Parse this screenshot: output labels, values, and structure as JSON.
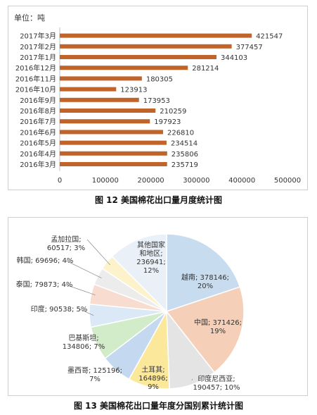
{
  "charts": [
    {
      "type": "bar",
      "orientation": "horizontal",
      "unit_label": "单位：吨",
      "categories": [
        "2017年3月",
        "2017年2月",
        "2017年1月",
        "2016年12月",
        "2016年11月",
        "2016年10月",
        "2016年9月",
        "2016年8月",
        "2016年7月",
        "2016年6月",
        "2016年5月",
        "2016年4月",
        "2016年3月"
      ],
      "values": [
        421547,
        377457,
        344103,
        281214,
        180305,
        123913,
        173953,
        210259,
        197923,
        226810,
        234514,
        235806,
        235719
      ],
      "xlim": [
        0,
        500000
      ],
      "xticks": [
        0,
        100000,
        200000,
        300000,
        400000,
        500000
      ],
      "grid": false,
      "bar_color": "#c0642a",
      "caption": "图 12  美国棉花出口量月度统计图"
    },
    {
      "type": "pie",
      "slices": [
        {
          "label": "越南",
          "value": 378146,
          "pct": "20%",
          "color": "#c8dcf0"
        },
        {
          "label": "中国",
          "value": 371426,
          "pct": "19%",
          "color": "#f6cfb8"
        },
        {
          "label": "印度尼西亚",
          "value": 190457,
          "pct": "10%",
          "color": "#e4e4e4"
        },
        {
          "label": "土耳其",
          "value": 164896,
          "pct": "9%",
          "color": "#fbe89a"
        },
        {
          "label": "墨西哥",
          "value": 125196,
          "pct": "7%",
          "color": "#c4d9ef"
        },
        {
          "label": "巴基斯坦",
          "value": 134806,
          "pct": "7%",
          "color": "#d2ebc8"
        },
        {
          "label": "印度",
          "value": 90538,
          "pct": "5%",
          "color": "#dbe8f6"
        },
        {
          "label": "泰国",
          "value": 79873,
          "pct": "4%",
          "color": "#f8dcd0"
        },
        {
          "label": "韩国",
          "value": 69696,
          "pct": "4%",
          "color": "#ececec"
        },
        {
          "label": "孟加拉国",
          "value": 60517,
          "pct": "3%",
          "color": "#fcf2cc"
        },
        {
          "label": "其他国家和地区",
          "value": 236941,
          "pct": "12%",
          "color": "#e9f0f8"
        }
      ],
      "caption": "图 13  美国棉花出口量年度分国别累计统计图"
    }
  ]
}
